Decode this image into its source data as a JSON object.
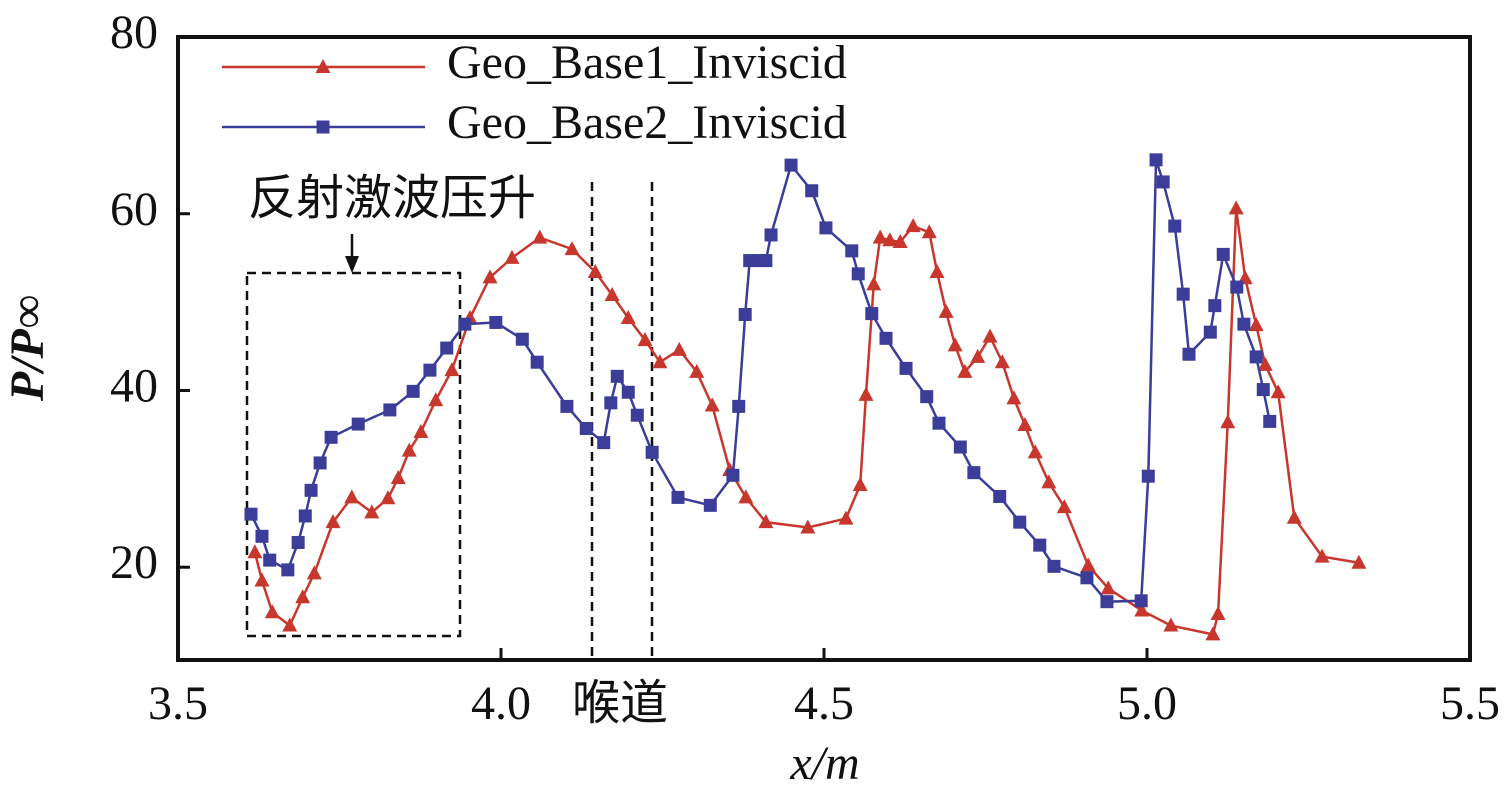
{
  "chart_data": {
    "type": "line",
    "x_label": "x/m",
    "y_label": "P/P∞",
    "annotations": [
      "反射激波压升",
      "喉道"
    ],
    "xlim": [
      3.5,
      5.5
    ],
    "xticks": [
      3.5,
      {
        "value": 4,
        "label": "4.0"
      },
      4.5,
      {
        "value": 5,
        "label": "5.0"
      },
      5.5
    ],
    "ylim": [
      9.5,
      80
    ],
    "yticks": [
      20,
      40,
      60,
      80
    ],
    "legend": "upper left",
    "series": [
      {
        "name": "Geo_Base1_Inviscid",
        "color": "#c8372d",
        "marker": "triangle",
        "x": [
          3.619,
          3.63,
          3.646,
          3.673,
          3.693,
          3.711,
          3.74,
          3.769,
          3.8,
          3.825,
          3.841,
          3.858,
          3.876,
          3.899,
          3.924,
          3.952,
          3.983,
          4.017,
          4.06,
          4.11,
          4.146,
          4.172,
          4.197,
          4.223,
          4.246,
          4.276,
          4.303,
          4.327,
          4.354,
          4.379,
          4.41,
          4.475,
          4.534,
          4.556,
          4.565,
          4.577,
          4.587,
          4.602,
          4.618,
          4.638,
          4.663,
          4.675,
          4.689,
          4.703,
          4.718,
          4.738,
          4.757,
          4.776,
          4.794,
          4.811,
          4.827,
          4.848,
          4.872,
          4.909,
          4.94,
          4.992,
          5.037,
          5.102,
          5.11,
          5.125,
          5.138,
          5.152,
          5.169,
          5.183,
          5.203,
          5.228,
          5.271,
          5.328
        ],
        "values": [
          21.7,
          18.5,
          14.9,
          13.4,
          16.6,
          19.3,
          25.1,
          27.9,
          26.2,
          27.8,
          30.1,
          33.2,
          35.3,
          38.9,
          42.3,
          48.2,
          52.8,
          55.0,
          57.3,
          56.0,
          53.4,
          50.8,
          48.2,
          45.7,
          43.2,
          44.6,
          42.1,
          38.3,
          31.0,
          27.9,
          25.1,
          24.5,
          25.5,
          29.3,
          39.5,
          52.0,
          57.3,
          57.0,
          56.8,
          58.6,
          57.9,
          53.4,
          48.9,
          45.1,
          42.1,
          43.8,
          46.1,
          43.2,
          39.1,
          36.1,
          33.0,
          29.6,
          26.8,
          20.2,
          17.6,
          15.1,
          13.4,
          12.4,
          14.7,
          36.4,
          60.6,
          52.7,
          47.4,
          42.9,
          39.8,
          25.6,
          21.2,
          20.5
        ]
      },
      {
        "name": "Geo_Base2_Inviscid",
        "color": "#3b3d98",
        "marker": "square",
        "x": [
          3.613,
          3.63,
          3.642,
          3.67,
          3.686,
          3.697,
          3.706,
          3.72,
          3.737,
          3.779,
          3.828,
          3.864,
          3.89,
          3.916,
          3.944,
          3.992,
          4.033,
          4.056,
          4.102,
          4.132,
          4.159,
          4.17,
          4.18,
          4.197,
          4.211,
          4.234,
          4.274,
          4.324,
          4.359,
          4.368,
          4.378,
          4.385,
          4.398,
          4.41,
          4.418,
          4.449,
          4.481,
          4.503,
          4.543,
          4.553,
          4.574,
          4.596,
          4.627,
          4.659,
          4.678,
          4.711,
          4.732,
          4.772,
          4.803,
          4.834,
          4.856,
          4.907,
          4.938,
          4.991,
          5.002,
          5.014,
          5.025,
          5.043,
          5.056,
          5.065,
          5.098,
          5.105,
          5.118,
          5.139,
          5.15,
          5.169,
          5.18,
          5.19
        ],
        "values": [
          26.0,
          23.5,
          20.8,
          19.7,
          22.8,
          25.8,
          28.7,
          31.8,
          34.7,
          36.2,
          37.8,
          39.9,
          42.3,
          44.8,
          47.5,
          47.7,
          45.8,
          43.2,
          38.2,
          35.7,
          34.1,
          38.6,
          41.6,
          39.8,
          37.2,
          33.0,
          27.9,
          27.0,
          30.4,
          38.2,
          48.6,
          54.7,
          54.7,
          54.7,
          57.6,
          65.5,
          62.6,
          58.4,
          55.8,
          53.2,
          48.7,
          45.9,
          42.5,
          39.3,
          36.3,
          33.6,
          30.7,
          28.0,
          25.1,
          22.5,
          20.1,
          18.8,
          16.1,
          16.2,
          30.3,
          66.1,
          63.6,
          58.6,
          50.9,
          44.1,
          46.6,
          49.6,
          55.4,
          51.7,
          47.5,
          43.8,
          40.1,
          36.5
        ]
      }
    ]
  }
}
